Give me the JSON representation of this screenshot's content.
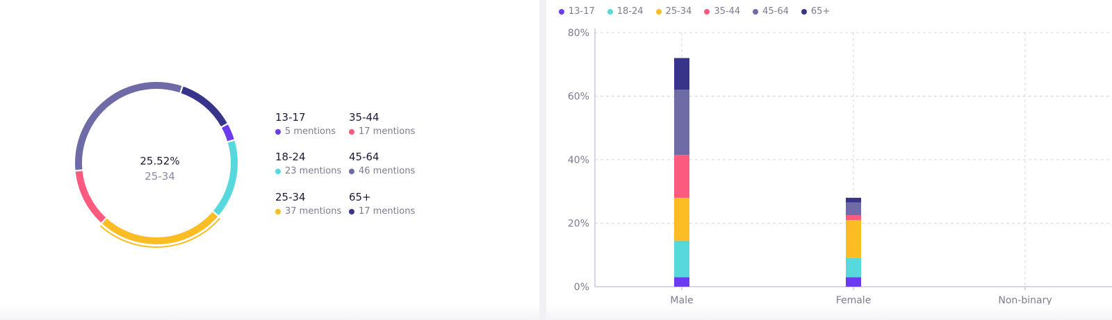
{
  "chart_data": [
    {
      "type": "pie",
      "variant": "donut",
      "center_value": "25.52%",
      "center_label": "25-34",
      "highlighted": "25-34",
      "slices": [
        {
          "label": "13-17",
          "mentions_text": "5 mentions",
          "value": 5,
          "color": "#6b3bf2"
        },
        {
          "label": "18-24",
          "mentions_text": "23 mentions",
          "value": 23,
          "color": "#56d8dc"
        },
        {
          "label": "25-34",
          "mentions_text": "37 mentions",
          "value": 37,
          "color": "#fbbc24"
        },
        {
          "label": "35-44",
          "mentions_text": "17 mentions",
          "value": 17,
          "color": "#fc5a7e"
        },
        {
          "label": "45-64",
          "mentions_text": "46 mentions",
          "value": 46,
          "color": "#6e6ba6"
        },
        {
          "label": "65+",
          "mentions_text": "17 mentions",
          "value": 17,
          "color": "#37348a"
        }
      ]
    },
    {
      "type": "bar",
      "stacked": true,
      "categories": [
        "Male",
        "Female",
        "Non-binary"
      ],
      "ylim": [
        0,
        80
      ],
      "yticks": [
        "0%",
        "20%",
        "40%",
        "60%",
        "80%"
      ],
      "grid": true,
      "legend_position": "top-left",
      "series": [
        {
          "name": "13-17",
          "color": "#6b3bf2",
          "values": [
            3,
            3,
            0
          ]
        },
        {
          "name": "18-24",
          "color": "#56d8dc",
          "values": [
            11.5,
            6,
            0
          ]
        },
        {
          "name": "25-34",
          "color": "#fbbc24",
          "values": [
            13.5,
            12,
            0
          ]
        },
        {
          "name": "35-44",
          "color": "#fc5a7e",
          "values": [
            13.5,
            1.5,
            0
          ]
        },
        {
          "name": "45-64",
          "color": "#6e6ba6",
          "values": [
            20.5,
            4,
            0
          ]
        },
        {
          "name": "65+",
          "color": "#37348a",
          "values": [
            10,
            1.5,
            0
          ]
        }
      ]
    }
  ]
}
